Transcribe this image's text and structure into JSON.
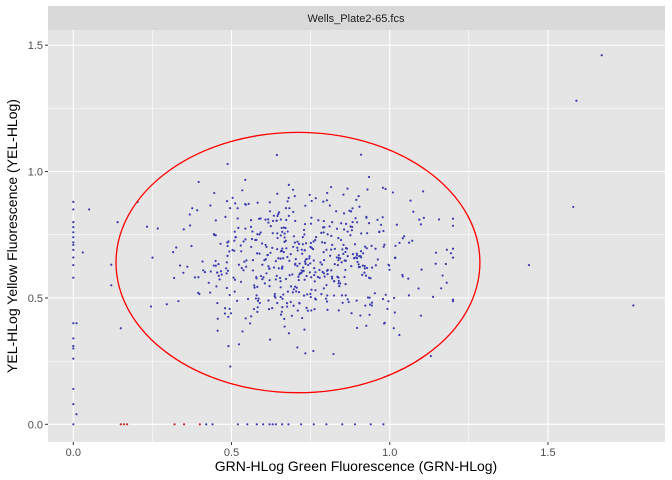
{
  "chart_data": {
    "type": "scatter",
    "facet_label": "Wells_Plate2-65.fcs",
    "xlabel": "GRN-HLog Green Fluorescence (GRN-HLog)",
    "ylabel": "YEL-HLog Yellow Fluorescence (YEL-HLog)",
    "xlim": [
      -0.08,
      1.87
    ],
    "ylim": [
      -0.07,
      1.56
    ],
    "x_ticks": [
      0.0,
      0.5,
      1.0,
      1.5
    ],
    "x_tick_labels": [
      "0.0",
      "0.5",
      "1.0",
      "1.5"
    ],
    "y_ticks": [
      0.0,
      0.5,
      1.0,
      1.5
    ],
    "y_tick_labels": [
      "0.0",
      "0.5",
      "1.0",
      "1.5"
    ],
    "grid": true,
    "colors": {
      "panel": "#e5e5e5",
      "grid": "#ffffff",
      "strip": "#d9d9d9",
      "points_inside": "#3b3bb0",
      "points_outside": "#cc2222",
      "ellipse": "#ff0000"
    },
    "gate_ellipse": {
      "center": [
        0.71,
        0.64
      ],
      "semi_axis_x": 0.575,
      "semi_axis_y": 0.515,
      "color": "#ff0000"
    },
    "cloud": {
      "count": 560,
      "center_x": 0.72,
      "center_y": 0.65,
      "sd_x": 0.19,
      "sd_y": 0.14
    },
    "extra_points": [
      [
        0.0,
        0.88
      ],
      [
        0.0,
        0.85
      ],
      [
        0.0,
        0.8
      ],
      [
        0.0,
        0.78
      ],
      [
        0.0,
        0.76
      ],
      [
        0.0,
        0.74
      ],
      [
        0.0,
        0.72
      ],
      [
        0.0,
        0.71
      ],
      [
        0.0,
        0.69
      ],
      [
        0.0,
        0.66
      ],
      [
        0.0,
        0.63
      ],
      [
        0.0,
        0.58
      ],
      [
        0.0,
        0.4
      ],
      [
        0.01,
        0.4
      ],
      [
        0.0,
        0.34
      ],
      [
        0.0,
        0.31
      ],
      [
        0.0,
        0.3
      ],
      [
        0.0,
        0.26
      ],
      [
        0.0,
        0.14
      ],
      [
        0.0,
        0.08
      ],
      [
        0.01,
        0.04
      ],
      [
        0.0,
        0.0
      ],
      [
        0.03,
        0.68
      ],
      [
        0.05,
        0.85
      ],
      [
        0.12,
        0.55
      ],
      [
        0.14,
        0.8
      ],
      [
        0.15,
        0.38
      ],
      [
        0.16,
        0.0
      ],
      [
        0.15,
        0.0
      ],
      [
        0.17,
        0.0
      ],
      [
        0.32,
        0.0
      ],
      [
        0.35,
        0.0
      ],
      [
        0.4,
        0.0
      ],
      [
        0.44,
        0.0
      ],
      [
        0.42,
        0.0
      ],
      [
        0.52,
        0.0
      ],
      [
        0.55,
        0.0
      ],
      [
        0.58,
        0.0
      ],
      [
        0.6,
        0.0
      ],
      [
        0.62,
        0.0
      ],
      [
        0.63,
        0.0
      ],
      [
        0.64,
        0.0
      ],
      [
        0.66,
        0.0
      ],
      [
        0.68,
        0.0
      ],
      [
        0.72,
        0.0
      ],
      [
        0.76,
        0.0
      ],
      [
        0.8,
        0.0
      ],
      [
        0.85,
        0.0
      ],
      [
        0.89,
        0.0
      ],
      [
        0.94,
        0.0
      ],
      [
        0.98,
        0.0
      ],
      [
        1.13,
        0.27
      ],
      [
        1.18,
        0.56
      ],
      [
        1.44,
        0.63
      ],
      [
        1.58,
        0.86
      ],
      [
        1.59,
        1.28
      ],
      [
        1.67,
        1.46
      ],
      [
        1.77,
        0.47
      ]
    ]
  }
}
